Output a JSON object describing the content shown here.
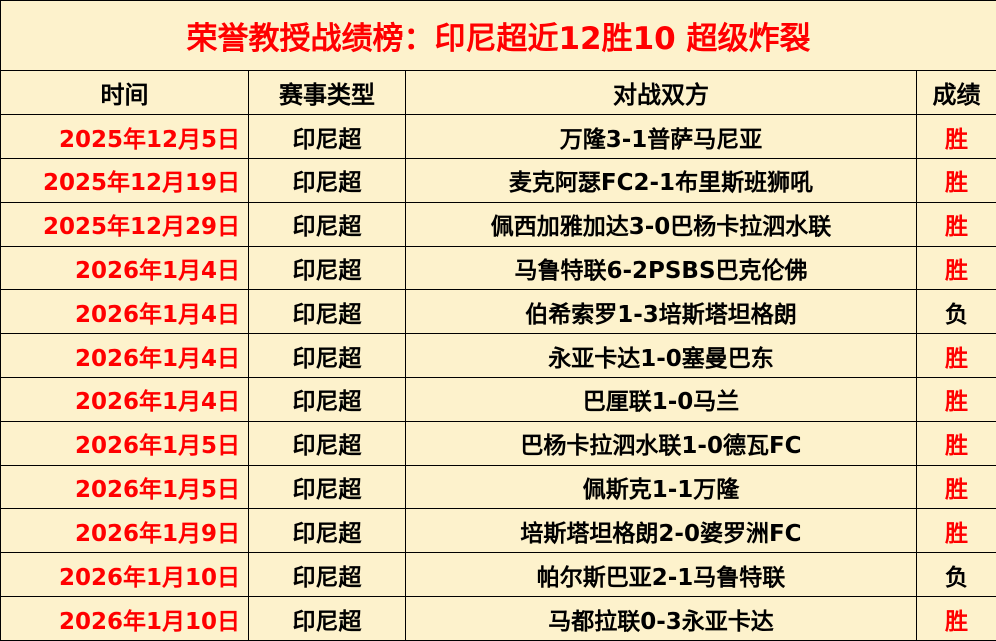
{
  "title": "荣誉教授战绩榜：印尼超近12胜10 超级炸裂",
  "headers": [
    "时间",
    "赛事类型",
    "对战双方",
    "成绩"
  ],
  "colors": {
    "accent": "#ff0000",
    "background": "#fdf2cc",
    "text": "#000000"
  },
  "rows": [
    {
      "date": "2025年12月5日",
      "league": "印尼超",
      "match": "万隆3-1普萨马尼亚",
      "result": "胜"
    },
    {
      "date": "2025年12月19日",
      "league": "印尼超",
      "match": "麦克阿瑟FC2-1布里斯班狮吼",
      "result": "胜"
    },
    {
      "date": "2025年12月29日",
      "league": "印尼超",
      "match": "佩西加雅加达3-0巴杨卡拉泗水联",
      "result": "胜"
    },
    {
      "date": "2026年1月4日",
      "league": "印尼超",
      "match": "马鲁特联6-2PSBS巴克伦佛",
      "result": "胜"
    },
    {
      "date": "2026年1月4日",
      "league": "印尼超",
      "match": "伯希索罗1-3培斯塔坦格朗",
      "result": "负"
    },
    {
      "date": "2026年1月4日",
      "league": "印尼超",
      "match": "永亚卡达1-0塞曼巴东",
      "result": "胜"
    },
    {
      "date": "2026年1月4日",
      "league": "印尼超",
      "match": "巴厘联1-0马兰",
      "result": "胜"
    },
    {
      "date": "2026年1月5日",
      "league": "印尼超",
      "match": "巴杨卡拉泗水联1-0德瓦FC",
      "result": "胜"
    },
    {
      "date": "2026年1月5日",
      "league": "印尼超",
      "match": "佩斯克1-1万隆",
      "result": "胜"
    },
    {
      "date": "2026年1月9日",
      "league": "印尼超",
      "match": "培斯塔坦格朗2-0婆罗洲FC",
      "result": "胜"
    },
    {
      "date": "2026年1月10日",
      "league": "印尼超",
      "match": "帕尔斯巴亚2-1马鲁特联",
      "result": "负"
    },
    {
      "date": "2026年1月10日",
      "league": "印尼超",
      "match": "马都拉联0-3永亚卡达",
      "result": "胜"
    }
  ]
}
